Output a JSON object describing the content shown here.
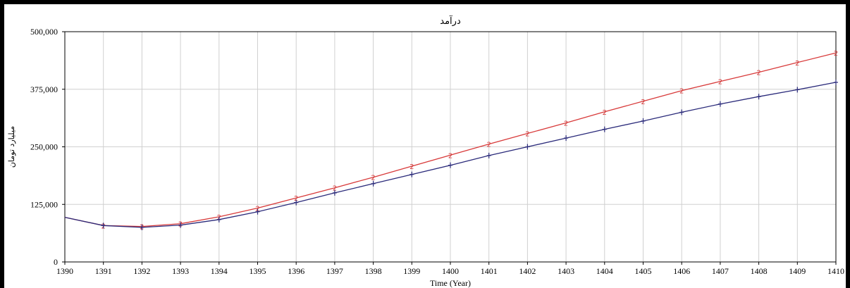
{
  "chart_data": {
    "type": "line",
    "title": "درآمد",
    "xlabel": "Time (Year)",
    "ylabel": "میلیارد تومان",
    "x": [
      1390,
      1391,
      1392,
      1393,
      1394,
      1395,
      1396,
      1397,
      1398,
      1399,
      1400,
      1401,
      1402,
      1403,
      1404,
      1405,
      1406,
      1407,
      1408,
      1409,
      1410
    ],
    "xlim": [
      1390,
      1410
    ],
    "ylim": [
      0,
      500000
    ],
    "y_ticks": [
      "0",
      "125,000",
      "250,000",
      "375,000",
      "500,000"
    ],
    "x_ticks": [
      "1390",
      "1391",
      "1392",
      "1393",
      "1394",
      "1395",
      "1396",
      "1397",
      "1398",
      "1399",
      "1400",
      "1401",
      "1402",
      "1403",
      "1404",
      "1405",
      "1406",
      "1407",
      "1408",
      "1409",
      "1410"
    ],
    "grid": true,
    "series": [
      {
        "name": "",
        "color": "#d83a3a",
        "marker": "2",
        "values": [
          97000,
          79000,
          77000,
          83000,
          98000,
          117000,
          139000,
          161000,
          184000,
          208000,
          232000,
          256000,
          279000,
          302000,
          326000,
          349000,
          372000,
          392000,
          412000,
          433000,
          454000
        ]
      },
      {
        "name": "",
        "color": "#2a2a7a",
        "marker": "+",
        "values": [
          97000,
          79000,
          75000,
          80000,
          92000,
          109000,
          129000,
          150000,
          170000,
          190000,
          210000,
          231000,
          250000,
          269000,
          288000,
          306000,
          325000,
          343000,
          359000,
          374000,
          390000
        ]
      }
    ]
  }
}
